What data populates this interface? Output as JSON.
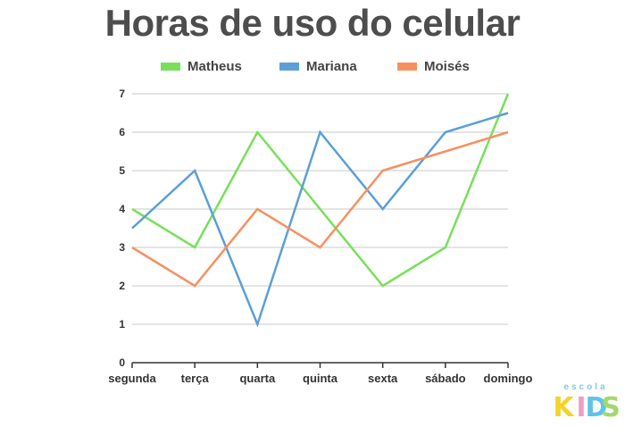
{
  "chart_data": {
    "type": "line",
    "title": "Horas de uso do celular",
    "categories": [
      "segunda",
      "terça",
      "quarta",
      "quinta",
      "sexta",
      "sábado",
      "domingo"
    ],
    "series": [
      {
        "name": "Matheus",
        "color": "#78e05a",
        "values": [
          4,
          3,
          6,
          4,
          2,
          3,
          7
        ]
      },
      {
        "name": "Mariana",
        "color": "#5b9fd6",
        "values": [
          3.5,
          5,
          1,
          6,
          4,
          6,
          6.5
        ]
      },
      {
        "name": "Moisés",
        "color": "#f79060",
        "values": [
          3,
          2,
          4,
          3,
          5,
          5.5,
          6
        ]
      }
    ],
    "ylim": [
      0,
      7
    ],
    "yticks": [
      "0",
      "1",
      "2",
      "3",
      "4",
      "5",
      "6",
      "7"
    ],
    "grid": "horizontal",
    "legend_position": "top"
  },
  "logo": {
    "top_text": "escola",
    "main_text": "KIDS",
    "letter_colors": [
      "#f4d42a",
      "#f39bc2",
      "#5ec4e8",
      "#a4d86e"
    ]
  }
}
